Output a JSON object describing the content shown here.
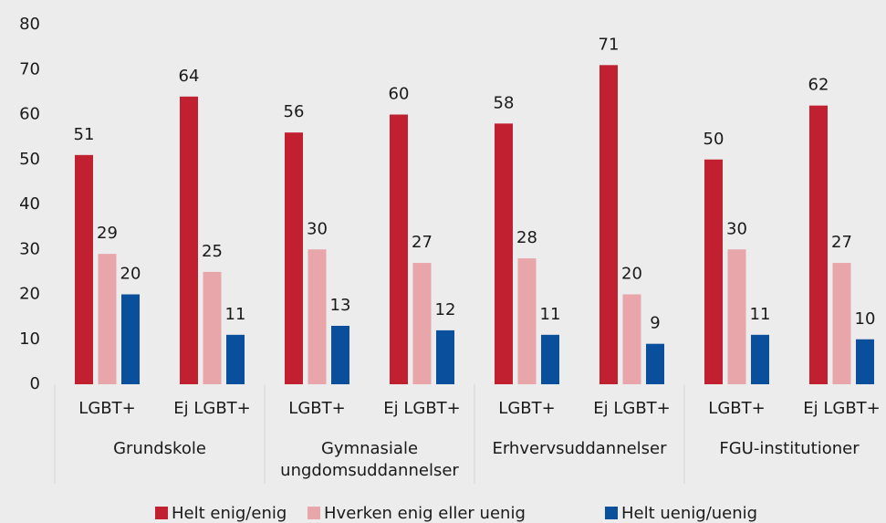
{
  "chart_data": {
    "type": "bar",
    "categories": [
      "LGBT+",
      "Ej LGBT+",
      "LGBT+",
      "Ej LGBT+",
      "LGBT+",
      "Ej LGBT+",
      "LGBT+",
      "Ej LGBT+"
    ],
    "groups": [
      "Grundskole",
      "Gymnasiale ungdomsuddannelser",
      "Erhvervsuddannelser",
      "FGU-institutioner"
    ],
    "series": [
      {
        "name": "Helt enig/enig",
        "color": "#c0202f",
        "values": [
          51,
          64,
          56,
          60,
          58,
          71,
          50,
          62
        ]
      },
      {
        "name": "Hverken enig eller uenig",
        "color": "#e8a6ab",
        "values": [
          29,
          25,
          30,
          27,
          28,
          20,
          30,
          27
        ]
      },
      {
        "name": "Helt uenig/uenig",
        "color": "#0a4f9c",
        "values": [
          20,
          11,
          13,
          12,
          11,
          9,
          11,
          10
        ]
      }
    ],
    "ylim": [
      0,
      80
    ],
    "yticks": [
      0,
      10,
      20,
      30,
      40,
      50,
      60,
      70,
      80
    ],
    "grid": false,
    "legend": "bottom"
  }
}
